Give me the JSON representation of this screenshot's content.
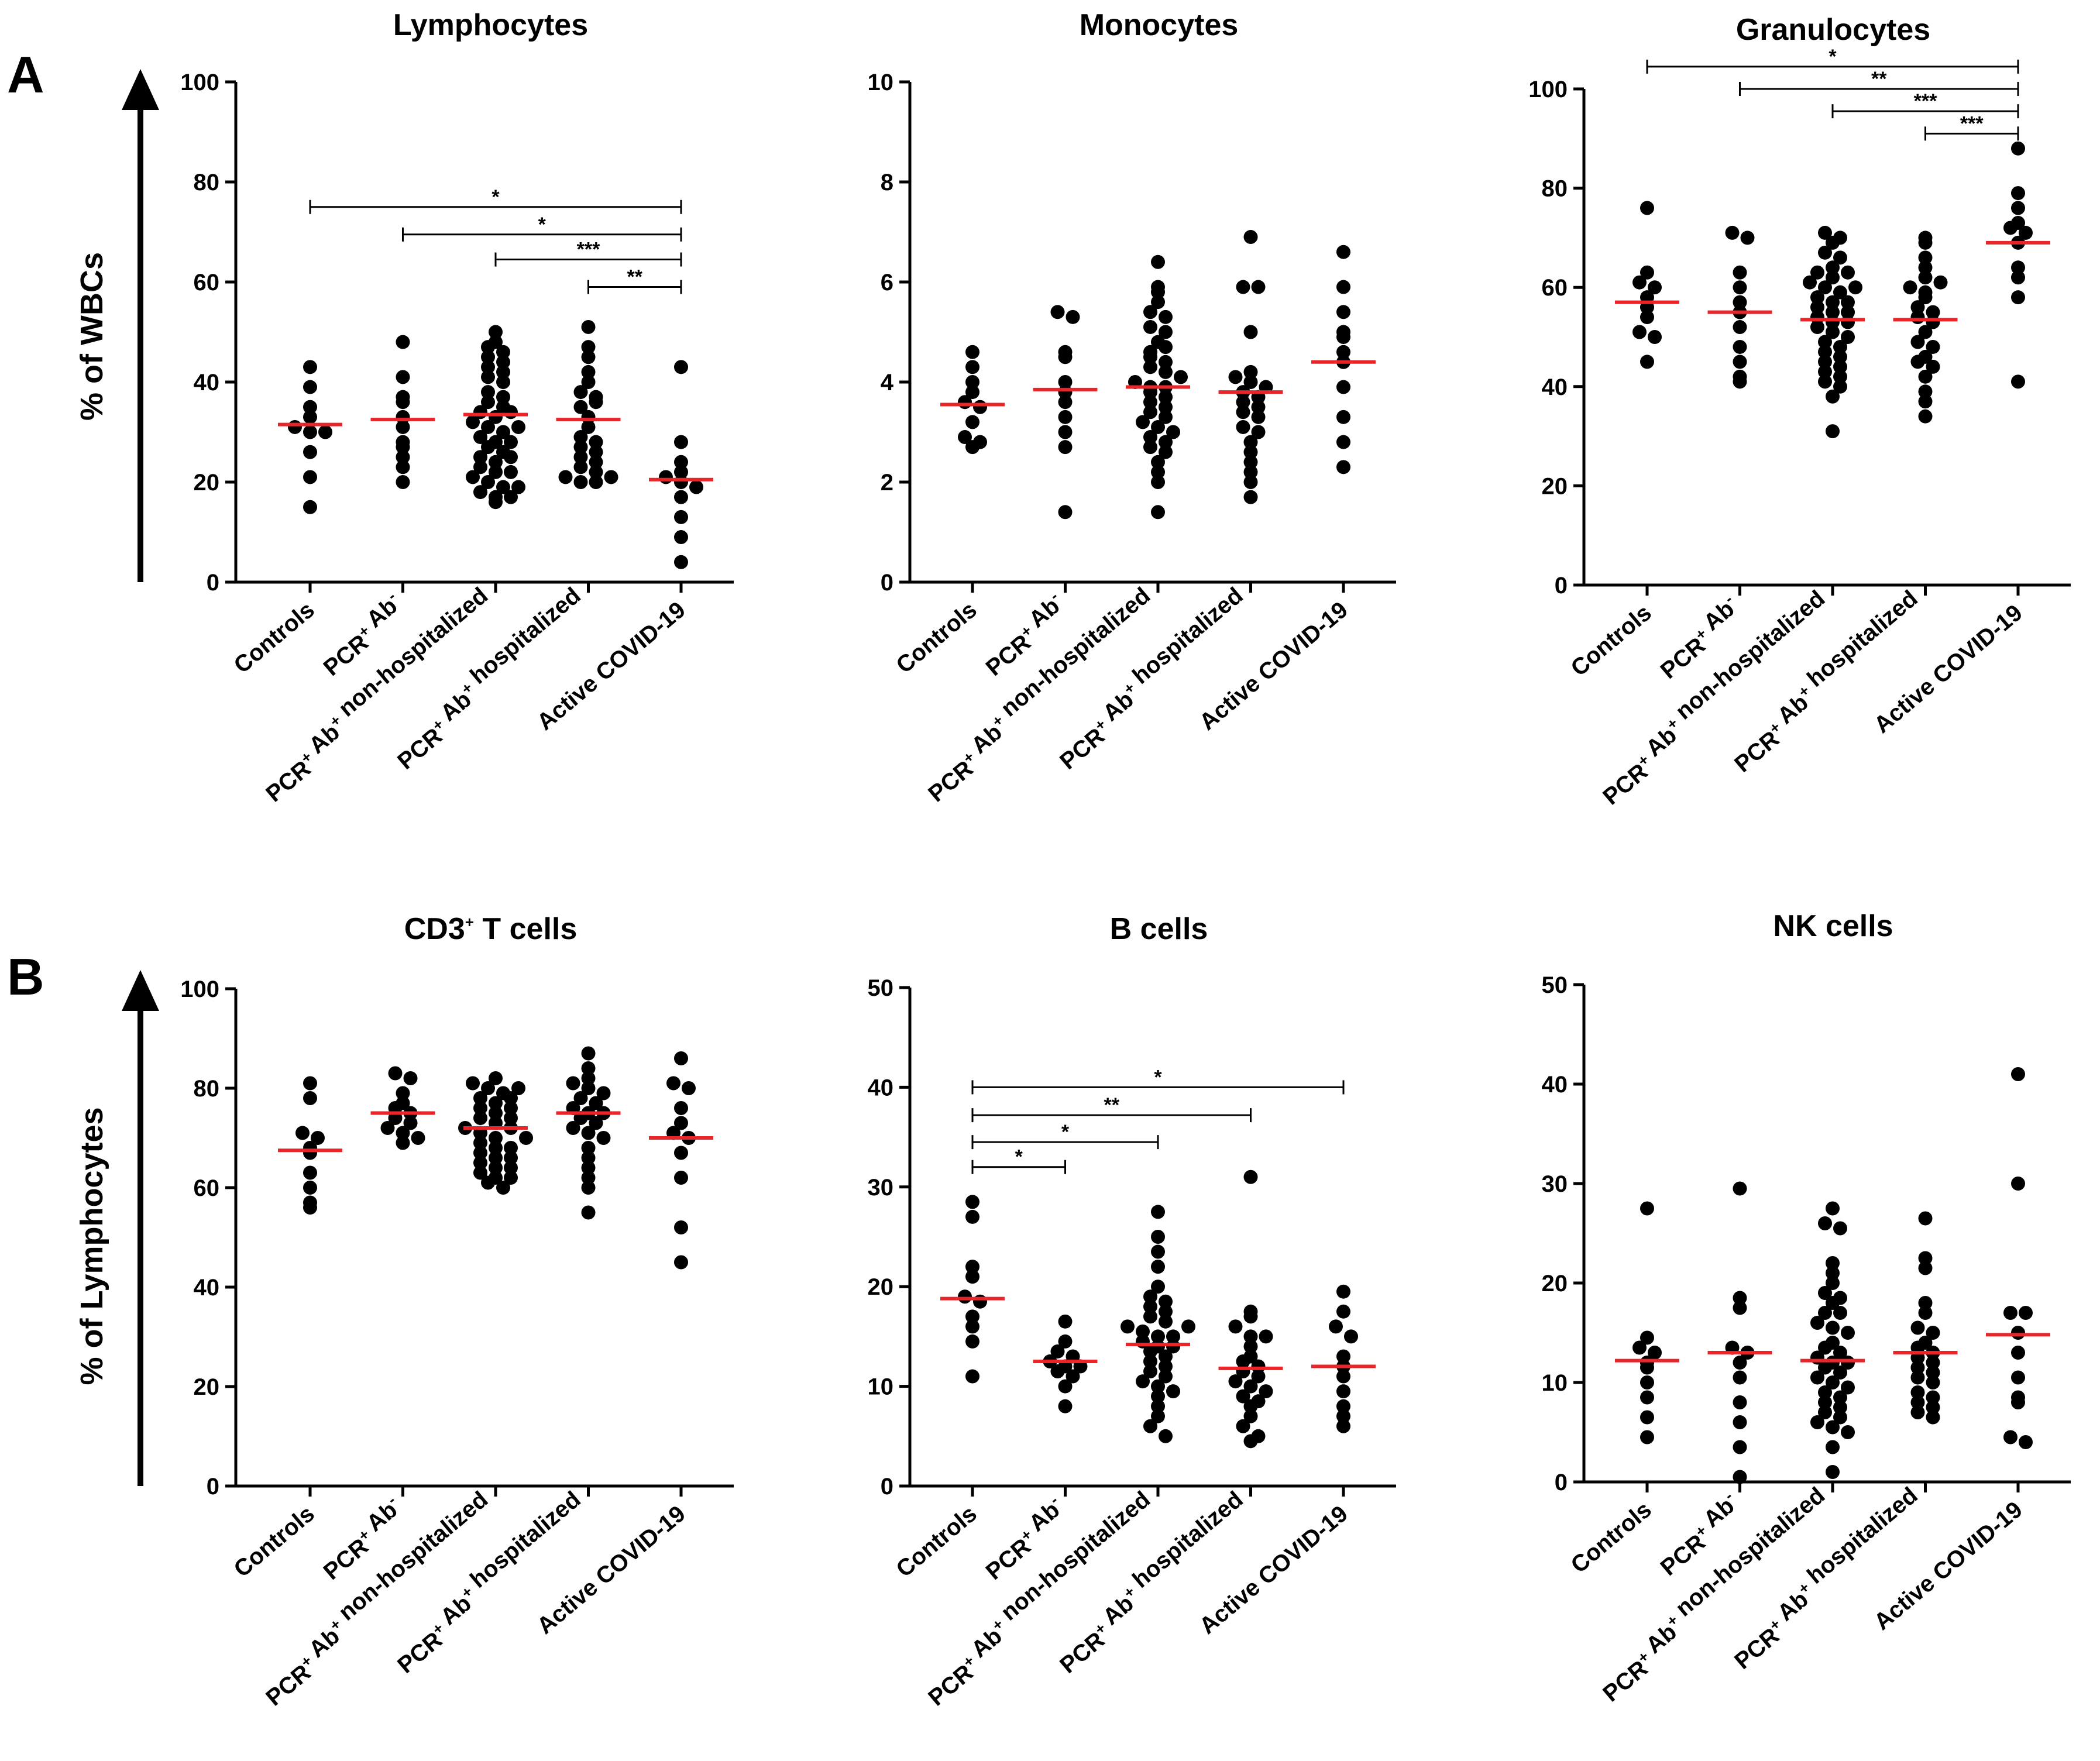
{
  "figure": {
    "panel_labels": [
      "A",
      "B"
    ],
    "row_ylabels": [
      "% of WBCs",
      "% of Lymphocytes"
    ],
    "median_color": "#e8262a",
    "point_color": "#000000"
  },
  "chart_data": [
    {
      "type": "scatter",
      "title": "Lymphocytes",
      "ylim": [
        0,
        100
      ],
      "yticks": [
        "0",
        "20",
        "40",
        "60",
        "80",
        "100"
      ],
      "categories": [
        "Controls",
        "PCR+ Ab-",
        "PCR+ Ab+ non-hospitalized",
        "PCR+ Ab+ hospitalized",
        "Active COVID-19"
      ],
      "groups": [
        [
          43,
          39,
          35,
          33,
          31,
          30,
          30,
          26,
          21,
          15
        ],
        [
          48,
          41,
          37,
          36,
          33,
          31,
          28,
          27,
          25,
          23,
          20
        ],
        [
          50,
          48,
          47,
          46,
          45,
          44,
          43,
          42,
          41,
          40,
          38,
          37,
          36,
          35,
          34,
          33,
          32,
          31,
          30,
          29,
          28,
          27,
          26,
          25,
          24,
          23,
          22,
          21,
          20,
          19,
          18,
          17,
          17,
          16,
          19,
          22,
          25,
          28,
          31,
          34
        ],
        [
          51,
          47,
          45,
          42,
          40,
          38,
          37,
          35,
          33,
          31,
          29,
          28,
          27,
          26,
          25,
          24,
          23,
          22,
          21,
          20,
          20,
          21,
          36
        ],
        [
          43,
          28,
          24,
          22,
          21,
          20,
          19,
          17,
          13,
          9,
          4
        ]
      ],
      "medians": [
        31.5,
        32.5,
        33.5,
        32.5,
        20.5
      ],
      "significance": [
        {
          "from": 0,
          "to": 4,
          "label": "*",
          "y": 75
        },
        {
          "from": 1,
          "to": 4,
          "label": "*",
          "y": 69.5
        },
        {
          "from": 2,
          "to": 4,
          "label": "***",
          "y": 64.5
        },
        {
          "from": 3,
          "to": 4,
          "label": "**",
          "y": 59
        }
      ]
    },
    {
      "type": "scatter",
      "title": "Monocytes",
      "ylim": [
        0,
        10
      ],
      "yticks": [
        "0",
        "2",
        "4",
        "6",
        "8",
        "10"
      ],
      "categories": [
        "Controls",
        "PCR+ Ab-",
        "PCR+ Ab+ non-hospitalized",
        "PCR+ Ab+ hospitalized",
        "Active COVID-19"
      ],
      "groups": [
        [
          4.6,
          4.3,
          4.0,
          3.8,
          3.6,
          3.5,
          3.2,
          2.9,
          2.8,
          2.7
        ],
        [
          5.4,
          5.3,
          4.6,
          4.5,
          4.0,
          3.8,
          3.6,
          3.3,
          3.0,
          2.7,
          1.4
        ],
        [
          6.4,
          5.9,
          5.8,
          5.6,
          5.4,
          5.3,
          5.1,
          5.0,
          4.8,
          4.6,
          4.5,
          4.3,
          4.2,
          4.0,
          3.9,
          3.8,
          3.7,
          3.6,
          3.5,
          3.4,
          3.3,
          3.2,
          3.1,
          3.0,
          2.9,
          2.8,
          2.7,
          2.6,
          2.4,
          2.2,
          2.0,
          1.4,
          3.9,
          4.1,
          4.4,
          4.7
        ],
        [
          6.9,
          5.9,
          5.9,
          5.0,
          4.2,
          4.1,
          4.0,
          3.9,
          3.8,
          3.7,
          3.6,
          3.5,
          3.4,
          3.3,
          3.1,
          3.0,
          2.8,
          2.6,
          2.4,
          2.2,
          2.0,
          1.7
        ],
        [
          6.6,
          5.9,
          5.4,
          5.0,
          4.9,
          4.6,
          4.4,
          3.9,
          3.3,
          2.8,
          2.3
        ]
      ],
      "medians": [
        3.55,
        3.85,
        3.9,
        3.8,
        4.4
      ],
      "significance": []
    },
    {
      "type": "scatter",
      "title": "Granulocytes",
      "ylim": [
        0,
        100
      ],
      "yticks": [
        "0",
        "20",
        "40",
        "60",
        "80",
        "100"
      ],
      "categories": [
        "Controls",
        "PCR+ Ab-",
        "PCR+ Ab+ non-hospitalized",
        "PCR+ Ab+ hospitalized",
        "Active COVID-19"
      ],
      "groups": [
        [
          76,
          63,
          61,
          60,
          58,
          56,
          54,
          51,
          50,
          45
        ],
        [
          71,
          70,
          63,
          60,
          57,
          55,
          52,
          48,
          45,
          42,
          41
        ],
        [
          71,
          70,
          69,
          67,
          66,
          64,
          63,
          62,
          61,
          60,
          59,
          58,
          57,
          56,
          55,
          54,
          53,
          52,
          51,
          50,
          49,
          48,
          47,
          46,
          45,
          44,
          43,
          42,
          41,
          40,
          38,
          31,
          53,
          55,
          57,
          60,
          63
        ],
        [
          70,
          69,
          66,
          64,
          62,
          60,
          59,
          58,
          56,
          55,
          54,
          53,
          51,
          49,
          48,
          46,
          45,
          44,
          42,
          39,
          37,
          34,
          61
        ],
        [
          88,
          79,
          76,
          73,
          72,
          71,
          69,
          64,
          62,
          58,
          41
        ]
      ],
      "medians": [
        57,
        55,
        53.5,
        53.5,
        69
      ],
      "significance": [
        {
          "from": 0,
          "to": 4,
          "label": "*",
          "y": 104.5
        },
        {
          "from": 1,
          "to": 4,
          "label": "**",
          "y": 100
        },
        {
          "from": 2,
          "to": 4,
          "label": "***",
          "y": 95.5
        },
        {
          "from": 3,
          "to": 4,
          "label": "***",
          "y": 91
        }
      ]
    },
    {
      "type": "scatter",
      "title": "CD3+ T cells",
      "ylim": [
        0,
        100
      ],
      "yticks": [
        "0",
        "20",
        "40",
        "60",
        "80",
        "100"
      ],
      "categories": [
        "Controls",
        "PCR+ Ab-",
        "PCR+ Ab+ non-hospitalized",
        "PCR+ Ab+ hospitalized",
        "Active COVID-19"
      ],
      "groups": [
        [
          81,
          78,
          71,
          70,
          68,
          67,
          63,
          60,
          57,
          56
        ],
        [
          83,
          82,
          79,
          77,
          76,
          75,
          74,
          73,
          72,
          71,
          70,
          69
        ],
        [
          82,
          81,
          80,
          79,
          78,
          77,
          76,
          75,
          74,
          73,
          72,
          71,
          70,
          69,
          68,
          67,
          66,
          65,
          64,
          63,
          62,
          61,
          60,
          80,
          78,
          76,
          74,
          72,
          70,
          68,
          66,
          64,
          62
        ],
        [
          87,
          84,
          82,
          81,
          80,
          79,
          78,
          77,
          76,
          75,
          74,
          73,
          72,
          71,
          70,
          68,
          66,
          64,
          62,
          60,
          55,
          75
        ],
        [
          86,
          81,
          80,
          76,
          73,
          71,
          70,
          67,
          62,
          52,
          45
        ]
      ],
      "medians": [
        67.5,
        75,
        72,
        75,
        70
      ],
      "significance": []
    },
    {
      "type": "scatter",
      "title": "B cells",
      "ylim": [
        0,
        50
      ],
      "yticks": [
        "0",
        "10",
        "20",
        "30",
        "40",
        "50"
      ],
      "categories": [
        "Controls",
        "PCR+ Ab-",
        "PCR+ Ab+ non-hospitalized",
        "PCR+ Ab+ hospitalized",
        "Active COVID-19"
      ],
      "groups": [
        [
          28.5,
          27,
          22,
          21,
          19,
          18.5,
          17,
          16,
          14.5,
          11
        ],
        [
          16.5,
          14.5,
          13.5,
          13,
          12.5,
          12,
          12,
          11.5,
          11,
          10,
          8
        ],
        [
          27.5,
          25,
          23.5,
          22,
          20,
          19,
          18.5,
          18,
          17.5,
          17,
          16.5,
          16,
          15.5,
          15,
          14.5,
          14,
          13.5,
          13,
          12.5,
          12,
          11.5,
          11,
          10.5,
          10,
          9.5,
          9,
          8,
          7,
          6,
          5,
          14,
          15,
          16
        ],
        [
          31,
          17.5,
          17,
          16,
          15,
          14,
          13,
          12.5,
          12,
          11.5,
          11,
          10.5,
          10,
          9.5,
          9,
          8.5,
          8,
          7,
          6,
          5,
          4.5,
          15
        ],
        [
          19.5,
          17.5,
          16,
          15,
          13,
          12,
          11,
          9.5,
          8,
          7,
          6
        ]
      ],
      "medians": [
        18.8,
        12.5,
        14.2,
        11.8,
        12
      ],
      "significance": [
        {
          "from": 0,
          "to": 4,
          "label": "*",
          "y": 40
        },
        {
          "from": 0,
          "to": 3,
          "label": "**",
          "y": 37.2
        },
        {
          "from": 0,
          "to": 2,
          "label": "*",
          "y": 34.5
        },
        {
          "from": 0,
          "to": 1,
          "label": "*",
          "y": 32
        }
      ]
    },
    {
      "type": "scatter",
      "title": "NK cells",
      "ylim": [
        0,
        50
      ],
      "yticks": [
        "0",
        "10",
        "20",
        "30",
        "40",
        "50"
      ],
      "categories": [
        "Controls",
        "PCR+ Ab-",
        "PCR+ Ab+ non-hospitalized",
        "PCR+ Ab+ hospitalized",
        "Active COVID-19"
      ],
      "groups": [
        [
          27.5,
          14.5,
          13.5,
          13,
          12,
          11.5,
          10,
          8.5,
          6.5,
          4.5
        ],
        [
          29.5,
          18.5,
          17.5,
          13.5,
          13,
          12,
          10.5,
          8,
          6,
          3.5,
          0.5
        ],
        [
          27.5,
          26,
          25.5,
          22,
          21,
          20,
          19,
          18.5,
          18,
          17,
          16,
          15.5,
          15,
          14,
          13.5,
          13,
          12.5,
          12,
          11.5,
          11,
          10.5,
          10,
          9.5,
          9,
          8.5,
          8,
          7.5,
          7,
          6.5,
          6,
          5.5,
          5,
          3.5,
          1,
          17,
          12
        ],
        [
          26.5,
          22.5,
          21.5,
          18,
          17,
          15.5,
          15,
          14,
          13.5,
          13,
          12.5,
          12,
          11.5,
          11,
          10.5,
          10,
          9,
          8.5,
          8,
          7.5,
          7,
          6.5
        ],
        [
          41,
          30,
          17,
          17,
          15,
          13,
          10.5,
          8.5,
          8,
          4.5,
          4
        ]
      ],
      "medians": [
        12.2,
        13,
        12.2,
        13,
        14.8
      ],
      "significance": []
    }
  ]
}
